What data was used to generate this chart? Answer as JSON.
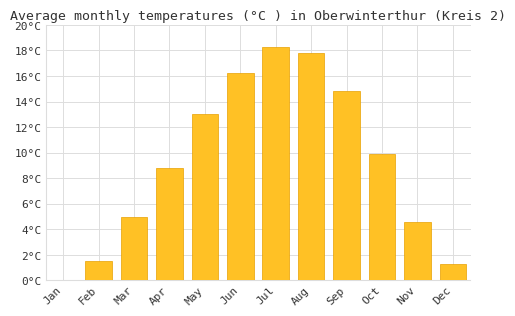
{
  "title": "Average monthly temperatures (°C ) in Oberwinterthur (Kreis 2)",
  "months": [
    "Jan",
    "Feb",
    "Mar",
    "Apr",
    "May",
    "Jun",
    "Jul",
    "Aug",
    "Sep",
    "Oct",
    "Nov",
    "Dec"
  ],
  "values": [
    0.0,
    1.5,
    5.0,
    8.8,
    13.0,
    16.2,
    18.3,
    17.8,
    14.8,
    9.9,
    4.6,
    1.3
  ],
  "bar_color": "#FFC125",
  "bar_edge_color": "#E8A000",
  "background_color": "#FFFFFF",
  "plot_bg_color": "#FFFFFF",
  "grid_color": "#DDDDDD",
  "title_color": "#333333",
  "tick_color": "#333333",
  "ylim": [
    0,
    20
  ],
  "ytick_step": 2,
  "title_fontsize": 9.5,
  "tick_fontsize": 8,
  "font_family": "monospace",
  "bar_width": 0.75
}
